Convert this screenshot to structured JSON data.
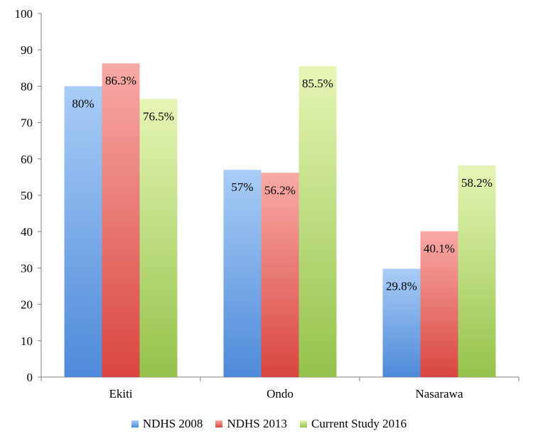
{
  "chart_data": {
    "type": "bar",
    "categories": [
      "Ekiti",
      "Ondo",
      "Nasarawa"
    ],
    "series": [
      {
        "name": "NDHS 2008",
        "values": [
          80,
          57,
          29.8
        ],
        "labels": [
          "80%",
          "57%",
          "29.8%"
        ],
        "color_top": "#a9cdf6",
        "color_bottom": "#4e8ad9"
      },
      {
        "name": "NDHS 2013",
        "values": [
          86.3,
          56.2,
          40.1
        ],
        "labels": [
          "86.3%",
          "56.2%",
          "40.1%"
        ],
        "color_top": "#f8aaa6",
        "color_bottom": "#d9463f"
      },
      {
        "name": "Current Study 2016",
        "values": [
          76.5,
          85.5,
          58.2
        ],
        "labels": [
          "76.5%",
          "85.5%",
          "58.2%"
        ],
        "color_top": "#e6f5b5",
        "color_bottom": "#94c24a"
      }
    ],
    "ylim": [
      0,
      100
    ],
    "yticks": [
      "0",
      "10",
      "20",
      "30",
      "40",
      "50",
      "60",
      "70",
      "80",
      "90",
      "100"
    ],
    "grid": false,
    "legend_position": "bottom",
    "title": "",
    "xlabel": "",
    "ylabel": ""
  }
}
